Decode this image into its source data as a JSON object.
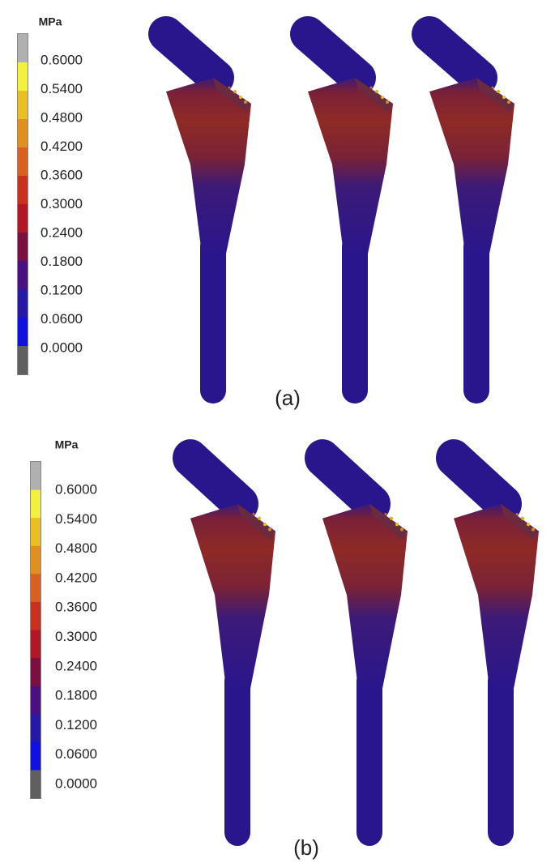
{
  "panels": [
    {
      "unit": "MPa",
      "scale_labels": [
        "0.6000",
        "0.5400",
        "0.4800",
        "0.4200",
        "0.3600",
        "0.3000",
        "0.2400",
        "0.1800",
        "0.1200",
        "0.0600",
        "0.0000"
      ],
      "caption": "(a)"
    },
    {
      "unit": "MPa",
      "scale_labels": [
        "0.6000",
        "0.5400",
        "0.4800",
        "0.4200",
        "0.3600",
        "0.3000",
        "0.2400",
        "0.1800",
        "0.1200",
        "0.0600",
        "0.0000"
      ],
      "caption": "(b)"
    }
  ]
}
